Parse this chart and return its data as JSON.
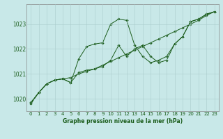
{
  "title": "Graphe pression niveau de la mer (hPa)",
  "bg_color": "#c8e8e8",
  "grid_color": "#aacccc",
  "line_color": "#1a5c1a",
  "ylim": [
    1019.5,
    1023.8
  ],
  "xlim": [
    -0.5,
    23.5
  ],
  "yticks": [
    1020,
    1021,
    1022,
    1023
  ],
  "xticks": [
    0,
    1,
    2,
    3,
    4,
    5,
    6,
    7,
    8,
    9,
    10,
    11,
    12,
    13,
    14,
    15,
    16,
    17,
    18,
    19,
    20,
    21,
    22,
    23
  ],
  "series1_x": [
    0,
    1,
    2,
    3,
    4,
    5,
    6,
    7,
    8,
    9,
    10,
    11,
    12,
    13,
    14,
    15,
    16,
    17,
    18,
    19,
    20,
    21,
    22,
    23
  ],
  "series1_y": [
    1019.8,
    1020.25,
    1020.6,
    1020.75,
    1020.8,
    1020.85,
    1021.0,
    1021.1,
    1021.2,
    1021.35,
    1021.5,
    1021.65,
    1021.8,
    1021.95,
    1022.1,
    1022.25,
    1022.4,
    1022.55,
    1022.7,
    1022.85,
    1023.0,
    1023.15,
    1023.35,
    1023.5
  ],
  "series2_x": [
    0,
    1,
    2,
    3,
    4,
    5,
    6,
    7,
    8,
    9,
    10,
    11,
    12,
    13,
    14,
    15,
    16,
    17,
    18,
    19,
    20,
    21,
    22,
    23
  ],
  "series2_y": [
    1019.8,
    1020.25,
    1020.6,
    1020.75,
    1020.8,
    1020.65,
    1021.05,
    1021.15,
    1021.2,
    1021.3,
    1021.55,
    1022.15,
    1021.7,
    1022.0,
    1022.15,
    1021.7,
    1021.45,
    1021.55,
    1022.2,
    1022.5,
    1023.1,
    1023.2,
    1023.4,
    1023.5
  ],
  "series3_x": [
    0,
    1,
    2,
    3,
    4,
    5,
    6,
    7,
    8,
    9,
    10,
    11,
    12,
    13,
    14,
    15,
    16,
    17,
    18,
    19,
    20,
    21,
    22,
    23
  ],
  "series3_y": [
    1019.85,
    1020.25,
    1020.6,
    1020.75,
    1020.8,
    1020.65,
    1021.6,
    1022.1,
    1022.2,
    1022.25,
    1023.0,
    1023.2,
    1023.15,
    1022.15,
    1021.7,
    1021.45,
    1021.55,
    1021.7,
    1022.2,
    1022.5,
    1023.1,
    1023.2,
    1023.4,
    1023.5
  ],
  "ylabel_fontsize": 5.5,
  "xlabel_fontsize": 5.5,
  "tick_fontsize": 5.0,
  "linewidth": 0.7,
  "markersize": 1.8
}
